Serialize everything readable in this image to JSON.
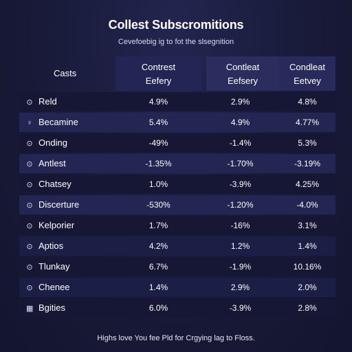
{
  "header": {
    "title": "Collest Subscromitions",
    "subtitle": "Cevefoebig ig to fot the slsegnition"
  },
  "table": {
    "category_header": "Casts",
    "columns": [
      {
        "line1": "Contrest",
        "line2": "Eefery"
      },
      {
        "line1": "Contleat",
        "line2": "Eefsery"
      },
      {
        "line1": "Condleat",
        "line2": "Eetvey"
      }
    ],
    "rows": [
      {
        "icon": "clock-icon",
        "glyph": "⊙",
        "label": "Reld",
        "values": [
          "4.9%",
          "2.9%",
          "4.8%"
        ],
        "shade": "dark"
      },
      {
        "icon": "pin-icon",
        "glyph": "♀",
        "label": "Becamine",
        "values": [
          "5.4%",
          "4.9%",
          "4.77%"
        ],
        "shade": "light"
      },
      {
        "icon": "clock-icon",
        "glyph": "⊙",
        "label": "Onding",
        "values": [
          "-49%",
          "-1.4%",
          "5.3%"
        ],
        "shade": "dark"
      },
      {
        "icon": "clock-icon",
        "glyph": "⊙",
        "label": "Antlest",
        "values": [
          "-1.35%",
          "-1.70%",
          "-3.19%"
        ],
        "shade": "light"
      },
      {
        "icon": "clock-icon",
        "glyph": "⊙",
        "label": "Chatsey",
        "values": [
          "1.0%",
          "-3.9%",
          "4.25%"
        ],
        "shade": "dark"
      },
      {
        "icon": "clock-icon",
        "glyph": "⊙",
        "label": "Discerture",
        "values": [
          "-530%",
          "-1.20%",
          "-4.0%"
        ],
        "shade": "light"
      },
      {
        "icon": "clock-icon",
        "glyph": "⊙",
        "label": "Kelporier",
        "values": [
          "1.7%",
          "-16%",
          "3.1%"
        ],
        "shade": "dark"
      },
      {
        "icon": "clock-icon",
        "glyph": "⊙",
        "label": "Aptios",
        "values": [
          "4.2%",
          "1.2%",
          "1.4%"
        ],
        "shade": "mid"
      },
      {
        "icon": "clock-icon",
        "glyph": "⊙",
        "label": "Tlunkay",
        "values": [
          "6.7%",
          "-1.9%",
          "10.16%"
        ],
        "shade": "dark"
      },
      {
        "icon": "clock-icon",
        "glyph": "⊙",
        "label": "Chenee",
        "values": [
          "1.4%",
          "2.9%",
          "2.0%"
        ],
        "shade": "mid"
      },
      {
        "icon": "grid-icon",
        "glyph": "▦",
        "label": "Bgities",
        "values": [
          "6.0%",
          "-3.9%",
          "2.8%"
        ],
        "shade": "dark"
      }
    ]
  },
  "footer": {
    "text": "Highs love You fee Pld for Crgying lag to Floss."
  }
}
